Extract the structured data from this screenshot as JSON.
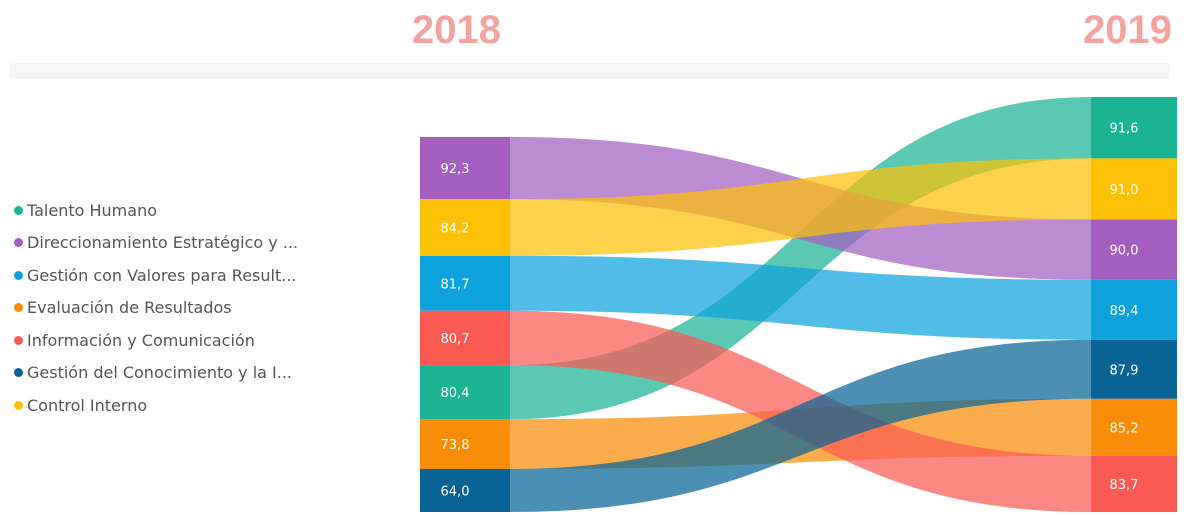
{
  "header": {
    "year_left": "2018",
    "year_right": "2019"
  },
  "chart_data": {
    "type": "sankey",
    "title": "",
    "left_label": "2018",
    "right_label": "2019",
    "series": [
      {
        "name": "Talento Humano",
        "legend_label": "Talento Humano",
        "color": "#1ab394",
        "value_2018": 80.4,
        "label_2018": "80,4",
        "value_2019": 91.6,
        "label_2019": "91,6"
      },
      {
        "name": "Direccionamiento Estratégico y Planeación",
        "legend_label": "Direccionamiento Estratégico y ...",
        "color": "#a45ec0",
        "value_2018": 92.3,
        "label_2018": "92,3",
        "value_2019": 90.0,
        "label_2019": "90,0"
      },
      {
        "name": "Gestión con Valores para Resultados",
        "legend_label": "Gestión con Valores para Result...",
        "color": "#0ea2dd",
        "value_2018": 81.7,
        "label_2018": "81,7",
        "value_2019": 89.4,
        "label_2019": "89,4"
      },
      {
        "name": "Evaluación de Resultados",
        "legend_label": "Evaluación de Resultados",
        "color": "#f98d0a",
        "value_2018": 73.8,
        "label_2018": "73,8",
        "value_2019": 85.2,
        "label_2019": "85,2"
      },
      {
        "name": "Información y Comunicación",
        "legend_label": "Información y Comunicación",
        "color": "#fb5a53",
        "value_2018": 80.7,
        "label_2018": "80,7",
        "value_2019": 83.7,
        "label_2019": "83,7"
      },
      {
        "name": "Gestión del Conocimiento y la Innovación",
        "legend_label": "Gestión del Conocimiento y la I...",
        "color": "#096495",
        "value_2018": 64.0,
        "label_2018": "64,0",
        "value_2019": 87.9,
        "label_2019": "87,9"
      },
      {
        "name": "Control Interno",
        "legend_label": "Control Interno",
        "color": "#fcc006",
        "value_2018": 84.2,
        "label_2018": "84,2",
        "value_2019": 91.0,
        "label_2019": "91,0"
      }
    ],
    "order_2018": [
      "Direccionamiento Estratégico y Planeación",
      "Control Interno",
      "Gestión con Valores para Resultados",
      "Información y Comunicación",
      "Talento Humano",
      "Evaluación de Resultados",
      "Gestión del Conocimiento y la Innovación"
    ],
    "order_2019": [
      "Talento Humano",
      "Control Interno",
      "Direccionamiento Estratégico y Planeación",
      "Gestión con Valores para Resultados",
      "Gestión del Conocimiento y la Innovación",
      "Evaluación de Resultados",
      "Información y Comunicación"
    ],
    "legend_position": "left"
  }
}
